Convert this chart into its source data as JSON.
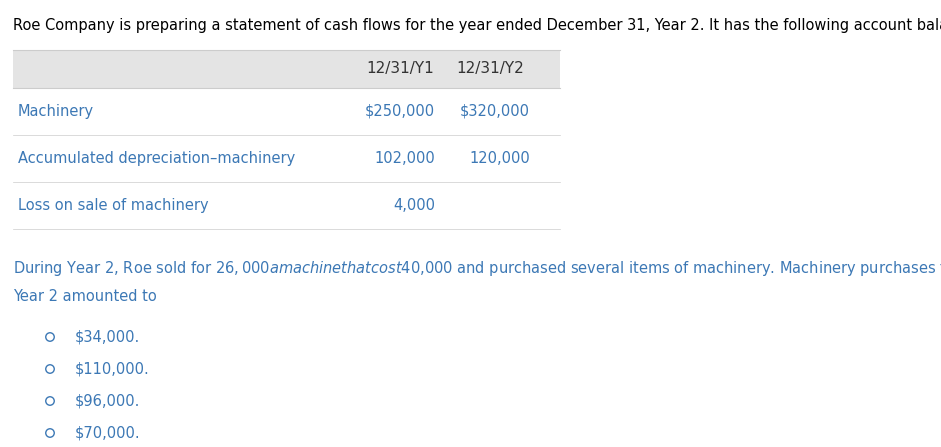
{
  "title": "Roe Company is preparing a statement of cash flows for the year ended December 31, Year 2. It has the following account balances:",
  "title_color": "#000000",
  "title_fontsize": 10.5,
  "header_bg": "#e4e4e4",
  "col1_header": "12/31/Y1",
  "col2_header": "12/31/Y2",
  "rows": [
    {
      "label": "Machinery",
      "val1": "$250,000",
      "val2": "$320,000"
    },
    {
      "label": "Accumulated depreciation–machinery",
      "val1": "102,000",
      "val2": "120,000"
    },
    {
      "label": "Loss on sale of machinery",
      "val1": "4,000",
      "val2": ""
    }
  ],
  "table_border_color": "#cccccc",
  "row_text_color": "#3c78b5",
  "header_text_color": "#333333",
  "paragraph_line1": "During Year 2, Roe sold for $26,000 a machine that cost $40,000 and purchased several items of machinery. Machinery purchases for",
  "paragraph_line2": "Year 2 amounted to",
  "para_color": "#3c78b5",
  "para_fontsize": 10.5,
  "choices": [
    "$34,000.",
    "$110,000.",
    "$96,000.",
    "$70,000."
  ],
  "choice_color": "#3c78b5",
  "choice_fontsize": 10.5,
  "background_color": "#ffffff",
  "fig_width": 9.41,
  "fig_height": 4.47
}
